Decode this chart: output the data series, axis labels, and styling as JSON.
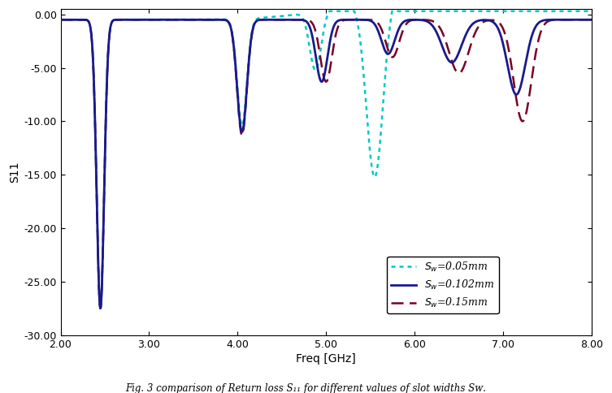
{
  "xlabel": "Freq [GHz]",
  "ylabel": "S11",
  "xlim": [
    2.0,
    8.0
  ],
  "ylim": [
    -30.0,
    0.5
  ],
  "yticks": [
    0.0,
    -5.0,
    -10.0,
    -15.0,
    -20.0,
    -25.0,
    -30.0
  ],
  "xticks": [
    2.0,
    3.0,
    4.0,
    5.0,
    6.0,
    7.0,
    8.0
  ],
  "background_color": "#ffffff",
  "line1_color": "#00c8c8",
  "line2_color": "#1a1a8c",
  "line3_color": "#7a0020",
  "caption": "Fig. 3 comparison of Return loss S11 for different values of slot widths Sw."
}
